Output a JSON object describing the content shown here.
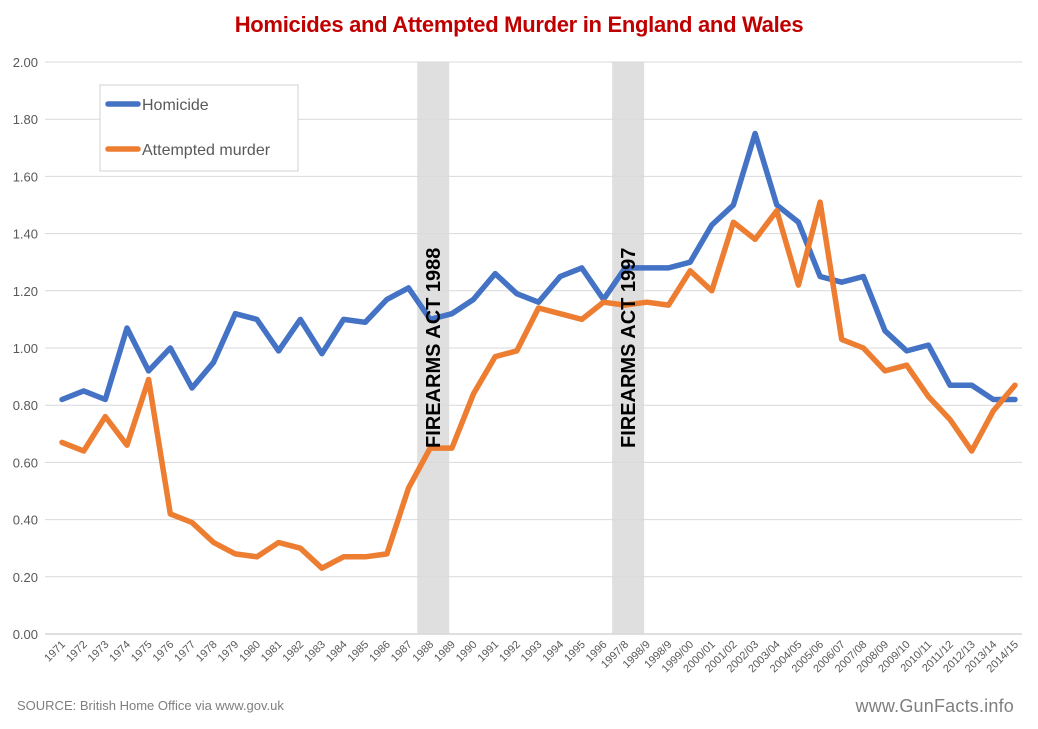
{
  "chart_data": {
    "type": "line",
    "title": "Homicides and Attempted Murder in England and Wales",
    "xlabel": "",
    "ylabel": "",
    "ylim": [
      0,
      2
    ],
    "yticks": [
      "0.00",
      "0.20",
      "0.40",
      "0.60",
      "0.80",
      "1.00",
      "1.20",
      "1.40",
      "1.60",
      "1.80",
      "2.00"
    ],
    "grid": true,
    "legend_position": "top-left",
    "categories": [
      "1971",
      "1972",
      "1973",
      "1974",
      "1975",
      "1976",
      "1977",
      "1978",
      "1979",
      "1980",
      "1981",
      "1982",
      "1983",
      "1984",
      "1985",
      "1986",
      "1987",
      "1988",
      "1989",
      "1990",
      "1991",
      "1992",
      "1993",
      "1994",
      "1995",
      "1996",
      "1997/8",
      "1998/9",
      "1998/9",
      "1999/00",
      "2000/01",
      "2001/02",
      "2002/03",
      "2003/04",
      "2004/05",
      "2005/06",
      "2006/07",
      "2007/08",
      "2008/09",
      "2009/10",
      "2010/11",
      "2011/12",
      "2012/13",
      "2013/14",
      "2014/15"
    ],
    "series": [
      {
        "name": "Homicide",
        "color": "#4472c4",
        "values": [
          0.82,
          0.85,
          0.82,
          1.07,
          0.92,
          1.0,
          0.86,
          0.95,
          1.12,
          1.1,
          0.99,
          1.1,
          0.98,
          1.1,
          1.09,
          1.17,
          1.21,
          1.1,
          1.12,
          1.17,
          1.26,
          1.19,
          1.16,
          1.25,
          1.28,
          1.17,
          1.28,
          1.28,
          1.28,
          1.3,
          1.43,
          1.5,
          1.75,
          1.5,
          1.44,
          1.25,
          1.23,
          1.25,
          1.06,
          0.99,
          1.01,
          0.87,
          0.87,
          0.82,
          0.82
        ]
      },
      {
        "name": "Attempted murder",
        "color": "#ed7d31",
        "values": [
          0.67,
          0.64,
          0.76,
          0.66,
          0.89,
          0.42,
          0.39,
          0.32,
          0.28,
          0.27,
          0.32,
          0.3,
          0.23,
          0.27,
          0.27,
          0.28,
          0.51,
          0.65,
          0.65,
          0.84,
          0.97,
          0.99,
          1.14,
          1.12,
          1.1,
          1.16,
          1.15,
          1.16,
          1.15,
          1.27,
          1.2,
          1.44,
          1.38,
          1.48,
          1.22,
          1.51,
          1.03,
          1.0,
          0.92,
          0.94,
          0.83,
          0.75,
          0.64,
          0.78,
          0.87
        ]
      }
    ],
    "annotations": [
      {
        "label": "FIREARMS ACT 1988",
        "category_index": 17
      },
      {
        "label": "FIREARMS ACT 1997",
        "category_index": 26
      }
    ]
  },
  "footer": {
    "source": "SOURCE: British Home Office via www.gov.uk",
    "watermark": "www.GunFacts.info"
  }
}
